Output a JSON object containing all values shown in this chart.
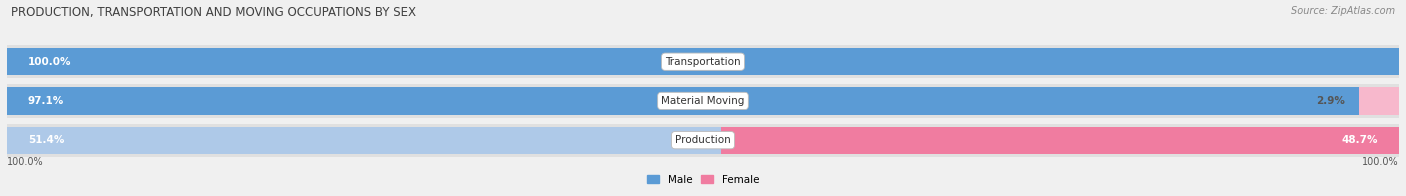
{
  "title": "PRODUCTION, TRANSPORTATION AND MOVING OCCUPATIONS BY SEX",
  "source": "Source: ZipAtlas.com",
  "categories": [
    "Transportation",
    "Material Moving",
    "Production"
  ],
  "male_values": [
    100.0,
    97.1,
    51.4
  ],
  "female_values": [
    0.0,
    2.9,
    48.7
  ],
  "male_color_dark": "#5b9bd5",
  "male_color_light": "#aec9e8",
  "female_color_dark": "#f07ca0",
  "female_color_light": "#f7b8cc",
  "bg_color": "#f0f0f0",
  "bar_bg_color": "#e0e0e0",
  "label_white": "#ffffff",
  "label_dark": "#555555",
  "title_color": "#404040",
  "source_color": "#888888",
  "legend_male_color": "#5b9bd5",
  "legend_female_color": "#f07ca0",
  "total": 100.0,
  "axis_label_left": "100.0%",
  "axis_label_right": "100.0%"
}
